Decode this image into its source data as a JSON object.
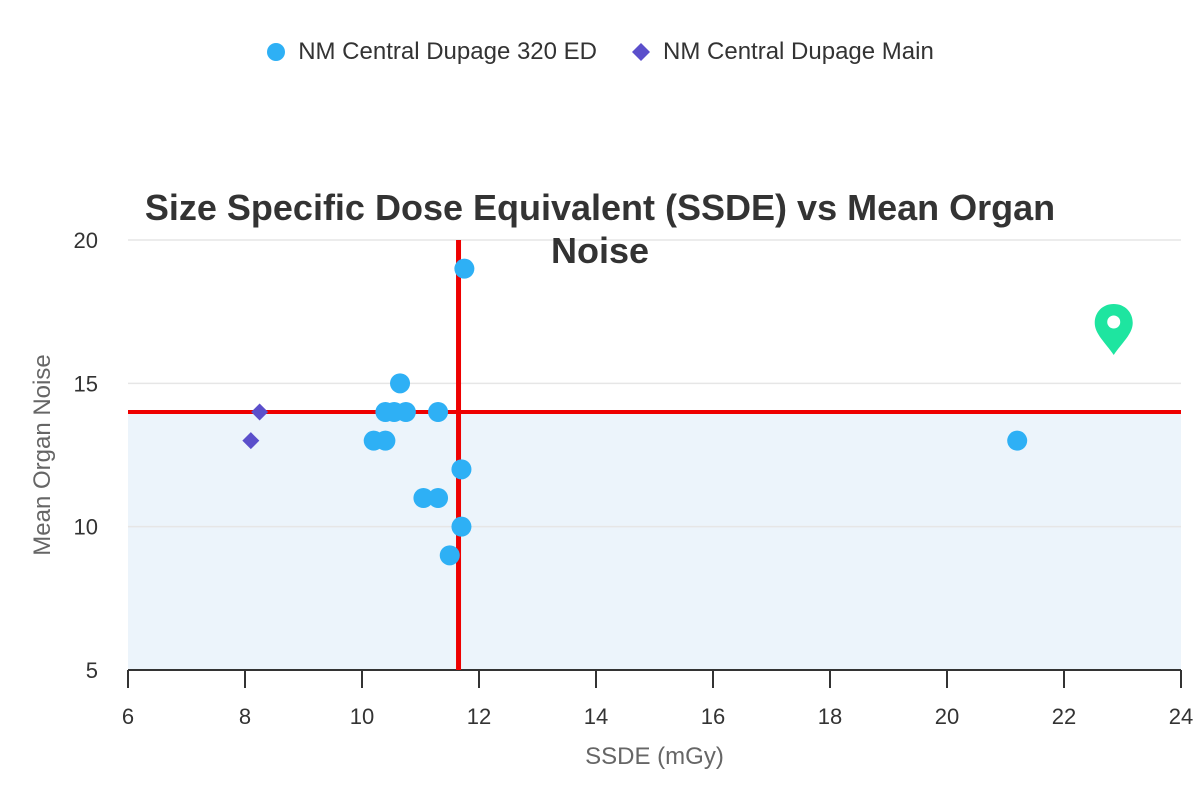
{
  "chart_data": {
    "type": "scatter",
    "title": "Size Specific Dose Equivalent (SSDE) vs Mean Organ Noise",
    "xlabel": "SSDE (mGy)",
    "ylabel": "Mean Organ Noise",
    "xlim": [
      6,
      24
    ],
    "ylim": [
      5,
      20
    ],
    "xticks": [
      6,
      8,
      10,
      12,
      14,
      16,
      18,
      20,
      22,
      24
    ],
    "yticks": [
      5,
      10,
      15,
      20
    ],
    "grid": "horizontal",
    "legend": "top-center",
    "reference_lines": {
      "x": 11.65,
      "y": 14,
      "color": "#ee0000"
    },
    "shaded_region": {
      "y_from": 5,
      "y_to": 14,
      "color": "#ecf4fb"
    },
    "series": [
      {
        "name": "NM Central Dupage 320 ED",
        "marker": "circle",
        "color": "#2eb0f5",
        "points": [
          [
            11.75,
            19
          ],
          [
            10.65,
            15
          ],
          [
            10.4,
            14
          ],
          [
            10.55,
            14
          ],
          [
            10.75,
            14
          ],
          [
            11.3,
            14
          ],
          [
            10.2,
            13
          ],
          [
            10.4,
            13
          ],
          [
            11.7,
            12
          ],
          [
            11.05,
            11
          ],
          [
            11.3,
            11
          ],
          [
            11.7,
            10
          ],
          [
            11.5,
            9
          ],
          [
            21.2,
            13
          ]
        ]
      },
      {
        "name": "NM Central Dupage Main",
        "marker": "diamond",
        "color": "#5b4fcb",
        "points": [
          [
            8.25,
            14
          ],
          [
            8.1,
            13
          ]
        ]
      }
    ]
  },
  "map_pin": {
    "icon": "location-pin-icon",
    "color": "#1ee5a0",
    "x": 22.85,
    "y": 17
  }
}
